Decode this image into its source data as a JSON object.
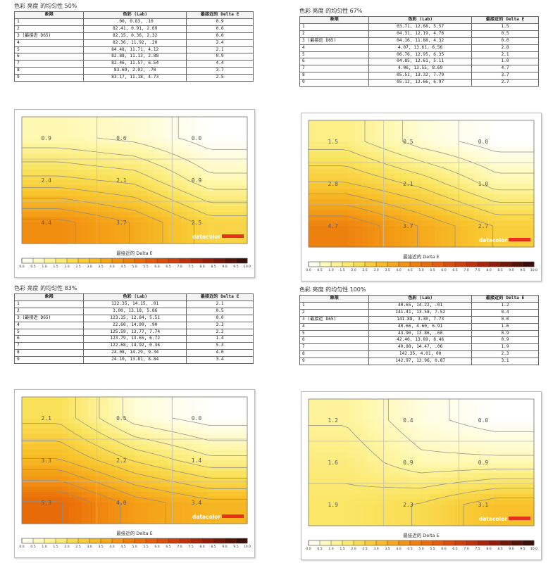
{
  "table_headers": {
    "quadrant": "象限",
    "color": "色彩 (Lab)",
    "delta": "最接近的 Delta E"
  },
  "legend_title": "最接近的 Delta E",
  "brand": "datacolor",
  "scale_ticks": [
    "0.0",
    "0.5",
    "1.0",
    "1.5",
    "2.0",
    "2.5",
    "3.0",
    "3.5",
    "4.0",
    "4.5",
    "5.0",
    "5.5",
    "6.0",
    "6.5",
    "7.0",
    "7.5",
    "8.0",
    "8.5",
    "9.0",
    "9.5",
    "10.0"
  ],
  "chart_data": [
    {
      "type": "heatmap",
      "title": "色彩 亮度 的均匀性 50%",
      "grid": "3x3",
      "rows": [
        {
          "q": "1",
          "lab": ".00,   0.83,    .10",
          "de": "0.9"
        },
        {
          "q": "2",
          "lab": "82.41,   0.91,   2.69",
          "de": "0.6"
        },
        {
          "q": "3 (最接近 D65)",
          "lab": "82.15,   0.36,   2.32",
          "de": "0.0"
        },
        {
          "q": "4",
          "lab": "82.36,  11.92,    .20",
          "de": "2.4"
        },
        {
          "q": "5",
          "lab": "84.48,  11.71,   4.12",
          "de": "2.1"
        },
        {
          "q": "6",
          "lab": "82.88,  11.13,   2.88",
          "de": "0.9"
        },
        {
          "q": "7",
          "lab": "82.46,  11.57,   6.54",
          "de": "4.4"
        },
        {
          "q": "8",
          "lab": "83.69,   2.02,    .70",
          "de": "3.7"
        },
        {
          "q": "9",
          "lab": "83.17,  11.18,   4.73",
          "de": "2.5"
        }
      ],
      "values": [
        [
          0.9,
          0.6,
          0.0
        ],
        [
          2.4,
          2.1,
          0.9
        ],
        [
          4.4,
          3.7,
          2.5
        ]
      ],
      "labels": [
        [
          "0.9",
          "0.6",
          "0.0"
        ],
        [
          "2.4",
          "2.1",
          "0.9"
        ],
        [
          "4.4",
          "3.7",
          "2.5"
        ]
      ]
    },
    {
      "type": "heatmap",
      "title": "色彩 亮度 的均匀性 67%",
      "grid": "3x3",
      "rows": [
        {
          "q": "1",
          "lab": "03.71,  12.68,   5.57",
          "de": "1.5"
        },
        {
          "q": "2",
          "lab": "04.31,  12.19,   4.76",
          "de": "0.5"
        },
        {
          "q": "3 (最接近 D65)",
          "lab": "04.16,  11.88,   4.32",
          "de": "0.0"
        },
        {
          "q": "4",
          "lab": "4.07,  13.61,   6.56",
          "de": "2.8"
        },
        {
          "q": "5",
          "lab": "06.76,  12.95,   6.35",
          "de": "2.1"
        },
        {
          "q": "6",
          "lab": "04.85,  12.61,   5.11",
          "de": "1.0"
        },
        {
          "q": "7",
          "lab": "4.06,  13.55,   8.69",
          "de": "4.7"
        },
        {
          "q": "8",
          "lab": "05.51,  13.32,   7.79",
          "de": "3.7"
        },
        {
          "q": "9",
          "lab": "05.12,  12.66,   6.97",
          "de": "2.7"
        }
      ],
      "values": [
        [
          1.5,
          0.5,
          0.0
        ],
        [
          2.8,
          2.1,
          1.0
        ],
        [
          4.7,
          3.7,
          2.7
        ]
      ],
      "labels": [
        [
          "1.5",
          "0.5",
          "0.0"
        ],
        [
          "2.8",
          "2.1",
          "1.0"
        ],
        [
          "4.7",
          "3.7",
          "2.7"
        ]
      ]
    },
    {
      "type": "heatmap",
      "title": "色彩 亮度 的均匀性 83%",
      "grid": "3x3",
      "rows": [
        {
          "q": "1",
          "lab": "122.35,  14.15,    .01",
          "de": "2.1"
        },
        {
          "q": "2",
          "lab": "3.00,  13.18,   5.86",
          "de": "0.5"
        },
        {
          "q": "3 (最接近 D65)",
          "lab": "123.15,  12.84,   5.51",
          "de": "0.0"
        },
        {
          "q": "4",
          "lab": "22.60,  14.99,    .90",
          "de": "3.3"
        },
        {
          "q": "5",
          "lab": "125.59,  13.77,   7.74",
          "de": "2.2"
        },
        {
          "q": "6",
          "lab": "123.79,  13.65,   6.72",
          "de": "1.4"
        },
        {
          "q": "7",
          "lab": "122.68,  14.92,   0.36",
          "de": "5.3"
        },
        {
          "q": "8",
          "lab": "24.08,  14.29,   9.34",
          "de": "4.0"
        },
        {
          "q": "9",
          "lab": "24.10,  13.81,   8.84",
          "de": "3.4"
        }
      ],
      "values": [
        [
          2.1,
          0.5,
          0.0
        ],
        [
          3.3,
          2.2,
          1.4
        ],
        [
          5.3,
          4.0,
          3.4
        ]
      ],
      "labels": [
        [
          "2.1",
          "0.5",
          "0.0"
        ],
        [
          "3.3",
          "2.2",
          "1.4"
        ],
        [
          "5.3",
          "4.0",
          "3.4"
        ]
      ]
    },
    {
      "type": "heatmap",
      "title": "色彩 亮度 的均匀性 100%",
      "grid": "3x3",
      "rows": [
        {
          "q": "1",
          "lab": "40.65,  14.22,    .01",
          "de": "1.2"
        },
        {
          "q": "2",
          "lab": "141.41,  13.58,   7.52",
          "de": "0.4"
        },
        {
          "q": "3 (最接近 D65)",
          "lab": "141.88,   3.30,   7.73",
          "de": "0.0"
        },
        {
          "q": "4",
          "lab": "40.66,   4.60,   6.91",
          "de": "1.6"
        },
        {
          "q": "5",
          "lab": "43.90,  13.86,    .60",
          "de": "0.9"
        },
        {
          "q": "6",
          "lab": "42.40,  13.89,   8.46",
          "de": "0.9"
        },
        {
          "q": "7",
          "lab": "40.88,  14.47,    .06",
          "de": "1.9"
        },
        {
          "q": "8",
          "lab": "142.35,   4.01,     00",
          "de": "2.3"
        },
        {
          "q": "9",
          "lab": "142.97,  13.96,   0.87",
          "de": "3.1"
        }
      ],
      "values": [
        [
          1.2,
          0.4,
          0.0
        ],
        [
          1.6,
          0.9,
          0.9
        ],
        [
          1.9,
          2.3,
          3.1
        ]
      ],
      "labels": [
        [
          "1.2",
          "0.4",
          "0.0"
        ],
        [
          "1.6",
          "0.9",
          "0.9"
        ],
        [
          "1.9",
          "2.3",
          "3.1"
        ]
      ]
    }
  ]
}
